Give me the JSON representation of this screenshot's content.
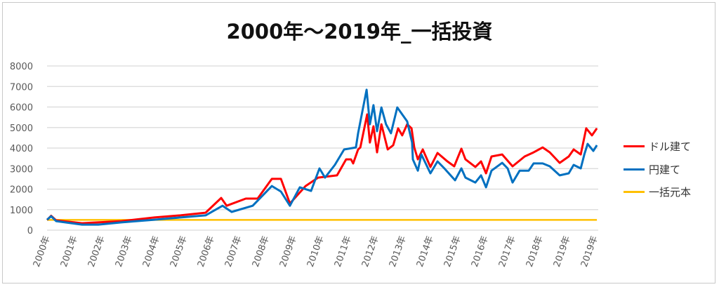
{
  "chart_data": {
    "type": "line",
    "title": "2000年～2019年_一括投資",
    "xlabel": "",
    "ylabel": "",
    "ylim": [
      0,
      8000
    ],
    "yticks": [
      0,
      1000,
      2000,
      3000,
      4000,
      5000,
      6000,
      7000,
      8000
    ],
    "xlim": [
      0,
      20
    ],
    "xtick_labels": [
      "2000年",
      "2001年",
      "2002年",
      "2003年",
      "2004年",
      "2005年",
      "2006年",
      "2007年",
      "2008年",
      "2009年",
      "2010年",
      "2011年",
      "2012年",
      "2013年",
      "2014年",
      "2015年",
      "2016年",
      "2017年",
      "2018年",
      "2019年",
      "2019年"
    ],
    "grid": true,
    "legend_position": "right",
    "series": [
      {
        "name": "ドル建て",
        "color": "#FF0000",
        "x": [
          0,
          0.15,
          0.33,
          1.28,
          2.72,
          3.92,
          4.87,
          5.79,
          6.36,
          6.56,
          7.26,
          7.69,
          8.21,
          8.54,
          8.87,
          9.44,
          9.9,
          10.59,
          10.92,
          11.1,
          11.18,
          11.36,
          11.44,
          11.69,
          11.79,
          11.92,
          12.05,
          12.21,
          12.44,
          12.64,
          12.82,
          12.97,
          13.15,
          13.31,
          13.41,
          13.54,
          13.72,
          14.0,
          14.26,
          14.62,
          14.87,
          15.13,
          15.28,
          15.64,
          15.85,
          16.03,
          16.23,
          16.62,
          17.0,
          17.44,
          17.77,
          18.1,
          18.36,
          18.72,
          19.05,
          19.23,
          19.49,
          19.69,
          19.9,
          20.08
        ],
        "y": [
          500,
          700,
          480,
          340,
          440,
          620,
          720,
          850,
          1570,
          1190,
          1540,
          1540,
          2500,
          2500,
          1300,
          2150,
          2560,
          2670,
          3450,
          3450,
          3250,
          3930,
          4030,
          5640,
          4270,
          5060,
          3790,
          5160,
          3930,
          4140,
          4960,
          4620,
          5160,
          4960,
          4030,
          3450,
          3930,
          3080,
          3760,
          3350,
          3110,
          3970,
          3450,
          3080,
          3350,
          2770,
          3590,
          3690,
          3110,
          3590,
          3790,
          4030,
          3790,
          3280,
          3590,
          3930,
          3690,
          4960,
          4620,
          4960
        ]
      },
      {
        "name": "円建て",
        "color": "#0070C0",
        "x": [
          0,
          0.15,
          0.33,
          1.28,
          1.87,
          2.72,
          3.92,
          4.87,
          5.79,
          6.41,
          6.74,
          7.51,
          8.21,
          8.54,
          8.87,
          9.23,
          9.64,
          9.95,
          10.15,
          10.51,
          10.85,
          11.28,
          11.36,
          11.67,
          11.79,
          11.92,
          12.05,
          12.21,
          12.38,
          12.56,
          12.79,
          13.15,
          13.33,
          13.36,
          13.54,
          13.67,
          14.0,
          14.26,
          14.51,
          14.9,
          15.13,
          15.28,
          15.64,
          15.85,
          16.03,
          16.23,
          16.62,
          16.82,
          17.0,
          17.26,
          17.59,
          17.77,
          18.1,
          18.36,
          18.72,
          19.05,
          19.23,
          19.49,
          19.62,
          19.74,
          19.95,
          20.08
        ],
        "y": [
          510,
          680,
          440,
          270,
          270,
          380,
          510,
          620,
          720,
          1190,
          890,
          1190,
          2150,
          1880,
          1190,
          2090,
          1910,
          3010,
          2560,
          3180,
          3930,
          4030,
          4720,
          6840,
          5160,
          6090,
          4820,
          5980,
          5160,
          4720,
          5980,
          5300,
          4270,
          3450,
          2900,
          3690,
          2770,
          3350,
          3010,
          2430,
          3010,
          2560,
          2320,
          2670,
          2090,
          2900,
          3280,
          3010,
          2320,
          2900,
          2900,
          3250,
          3250,
          3110,
          2670,
          2770,
          3180,
          3010,
          3690,
          4200,
          3860,
          4140
        ]
      },
      {
        "name": "一括元本",
        "color": "#FFC000",
        "x": [
          0,
          20.08
        ],
        "y": [
          500,
          500
        ]
      }
    ]
  }
}
